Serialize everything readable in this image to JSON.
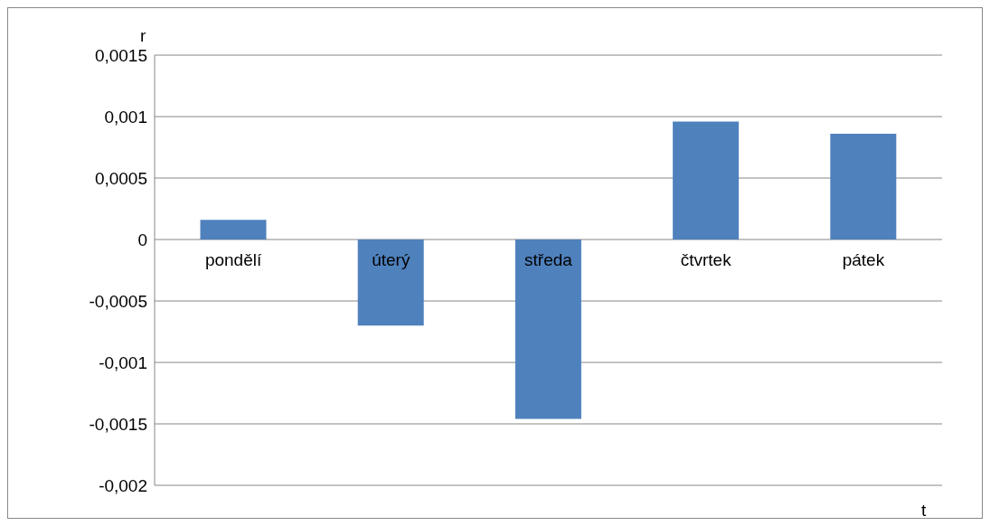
{
  "chart_data": {
    "type": "bar",
    "xlabel": "t",
    "ylabel": "r",
    "categories": [
      "pondělí",
      "úterý",
      "středa",
      "čtvrtek",
      "pátek"
    ],
    "values": [
      0.00016,
      -0.0007,
      -0.00146,
      0.00096,
      0.00086
    ],
    "color": "#4f81bd",
    "ylim": [
      -0.002,
      0.0015
    ],
    "yticks": [
      {
        "value": -0.002,
        "label": "-0,002"
      },
      {
        "value": -0.0015,
        "label": "-0,0015"
      },
      {
        "value": -0.001,
        "label": "-0,001"
      },
      {
        "value": -0.0005,
        "label": "-0,0005"
      },
      {
        "value": 0,
        "label": "0"
      },
      {
        "value": 0.0005,
        "label": "0,0005"
      },
      {
        "value": 0.001,
        "label": "0,001"
      },
      {
        "value": 0.0015,
        "label": "0,0015"
      }
    ],
    "grid": "y",
    "legend": false
  }
}
